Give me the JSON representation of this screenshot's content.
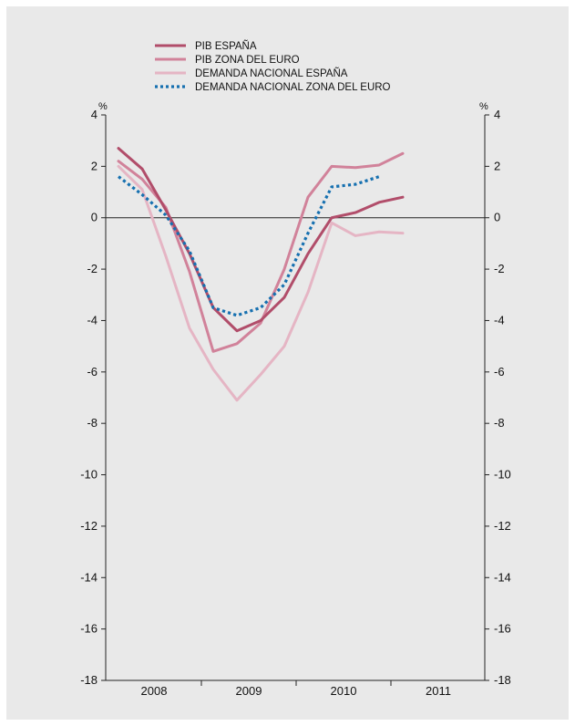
{
  "chart_data": {
    "type": "line",
    "title": "",
    "xlabel": "",
    "ylabel": "%",
    "ylabel_right": "%",
    "ylim": [
      -18,
      4
    ],
    "yticks": [
      4,
      2,
      0,
      -2,
      -4,
      -6,
      -8,
      -10,
      -12,
      -14,
      -16,
      -18
    ],
    "year_labels": [
      "2008",
      "2009",
      "2010",
      "2011"
    ],
    "x_unit": "quarter",
    "xlim": [
      "2008-Q1",
      "2011-Q4"
    ],
    "grid": false,
    "zero_line": true,
    "legend_position": "top-left",
    "series": [
      {
        "name": "PIB ESPAÑA",
        "color": "#b14d6a",
        "style": "solid",
        "x": [
          "2008-Q1",
          "2008-Q2",
          "2008-Q3",
          "2008-Q4",
          "2009-Q1",
          "2009-Q2",
          "2009-Q3",
          "2009-Q4",
          "2010-Q1",
          "2010-Q2",
          "2010-Q3",
          "2010-Q4",
          "2011-Q1"
        ],
        "values": [
          2.7,
          1.9,
          0.3,
          -1.4,
          -3.5,
          -4.4,
          -4.0,
          -3.1,
          -1.4,
          0.0,
          0.2,
          0.6,
          0.8
        ]
      },
      {
        "name": "PIB ZONA DEL EURO",
        "color": "#d1829a",
        "style": "solid",
        "x": [
          "2008-Q1",
          "2008-Q2",
          "2008-Q3",
          "2008-Q4",
          "2009-Q1",
          "2009-Q2",
          "2009-Q3",
          "2009-Q4",
          "2010-Q1",
          "2010-Q2",
          "2010-Q3",
          "2010-Q4",
          "2011-Q1"
        ],
        "values": [
          2.2,
          1.5,
          0.4,
          -2.1,
          -5.2,
          -4.9,
          -4.1,
          -2.0,
          0.8,
          2.0,
          1.95,
          2.05,
          2.5
        ]
      },
      {
        "name": "DEMANDA NACIONAL ESPAÑA",
        "color": "#e5b5c4",
        "style": "solid",
        "x": [
          "2008-Q1",
          "2008-Q2",
          "2008-Q3",
          "2008-Q4",
          "2009-Q1",
          "2009-Q2",
          "2009-Q3",
          "2009-Q4",
          "2010-Q1",
          "2010-Q2",
          "2010-Q3",
          "2010-Q4",
          "2011-Q1"
        ],
        "values": [
          2.0,
          1.1,
          -1.5,
          -4.3,
          -5.9,
          -7.1,
          -6.1,
          -5.0,
          -2.9,
          -0.2,
          -0.7,
          -0.55,
          -0.6
        ]
      },
      {
        "name": "DEMANDA NACIONAL ZONA DEL EURO",
        "color": "#1670b0",
        "style": "dotted",
        "x": [
          "2008-Q1",
          "2008-Q2",
          "2008-Q3",
          "2008-Q4",
          "2009-Q1",
          "2009-Q2",
          "2009-Q3",
          "2009-Q4",
          "2010-Q1",
          "2010-Q2",
          "2010-Q3",
          "2010-Q4"
        ],
        "values": [
          1.6,
          0.9,
          0.1,
          -1.3,
          -3.5,
          -3.8,
          -3.5,
          -2.6,
          -0.6,
          1.2,
          1.3,
          1.6
        ]
      }
    ]
  }
}
